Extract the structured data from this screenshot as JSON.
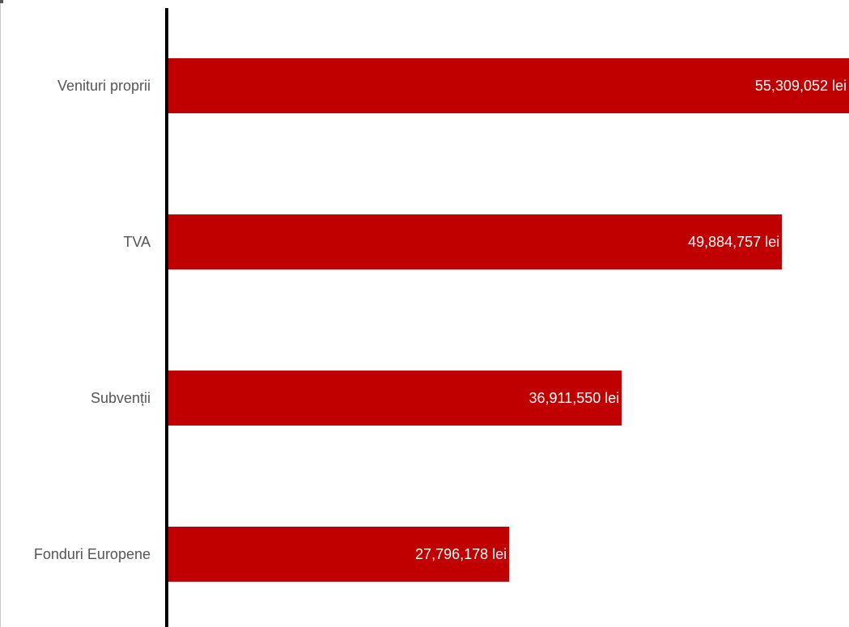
{
  "chart_data": {
    "type": "bar",
    "orientation": "horizontal",
    "categories": [
      "Venituri proprii",
      "TVA",
      "Subvenții",
      "Fonduri Europene"
    ],
    "values": [
      55309052,
      49884757,
      36911550,
      27796178
    ],
    "value_labels": [
      "55,309,052 lei",
      "49,884,757 lei",
      "36,911,550 lei",
      "27,796,178 lei"
    ],
    "unit": "lei",
    "xlim": [
      0,
      55309052
    ],
    "grid": false,
    "legend": "none",
    "title": "",
    "xlabel": "",
    "ylabel": ""
  },
  "colors": {
    "bar": "#c00000",
    "axis": "#000000",
    "category_text": "#555555",
    "value_text": "#ffffff"
  }
}
